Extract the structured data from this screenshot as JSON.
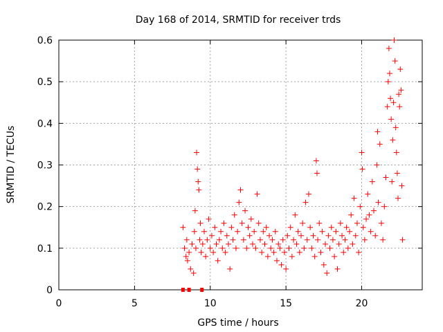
{
  "chart_data": {
    "type": "scatter",
    "title": "Day 168 of 2014, SRMTID for receiver trds",
    "xlabel": "GPS time / hours",
    "ylabel": "SRMTID / TECUs",
    "xlim": [
      0,
      24
    ],
    "ylim": [
      0,
      0.6
    ],
    "x_ticks": [
      0,
      5,
      10,
      15,
      20
    ],
    "y_ticks": [
      0,
      0.1,
      0.2,
      0.3,
      0.4,
      0.5,
      0.6
    ],
    "x_tick_labels": [
      "0",
      "5",
      "10",
      "15",
      "20"
    ],
    "y_tick_labels": [
      "0",
      "0.1",
      "0.2",
      "0.3",
      "0.4",
      "0.5",
      "0.6"
    ],
    "grid": true,
    "marker": "+",
    "color": "#ff0000",
    "series": [
      {
        "name": "SRMTID",
        "points": [
          [
            8.2,
            0.15
          ],
          [
            8.3,
            0.1
          ],
          [
            8.4,
            0.08
          ],
          [
            8.45,
            0.12
          ],
          [
            8.5,
            0.07
          ],
          [
            8.6,
            0.09
          ],
          [
            8.7,
            0.05
          ],
          [
            8.8,
            0.11
          ],
          [
            8.9,
            0.04
          ],
          [
            8.95,
            0.14
          ],
          [
            9.0,
            0.19
          ],
          [
            9.05,
            0.1
          ],
          [
            9.1,
            0.33
          ],
          [
            9.15,
            0.29
          ],
          [
            9.2,
            0.26
          ],
          [
            9.25,
            0.24
          ],
          [
            9.3,
            0.12
          ],
          [
            9.35,
            0.16
          ],
          [
            9.4,
            0.09
          ],
          [
            9.5,
            0.11
          ],
          [
            9.6,
            0.14
          ],
          [
            9.7,
            0.08
          ],
          [
            9.8,
            0.12
          ],
          [
            9.9,
            0.17
          ],
          [
            10.0,
            0.1
          ],
          [
            10.1,
            0.13
          ],
          [
            10.2,
            0.09
          ],
          [
            10.3,
            0.15
          ],
          [
            10.4,
            0.11
          ],
          [
            10.5,
            0.07
          ],
          [
            10.6,
            0.12
          ],
          [
            10.7,
            0.14
          ],
          [
            10.8,
            0.1
          ],
          [
            10.9,
            0.16
          ],
          [
            11.0,
            0.09
          ],
          [
            11.1,
            0.13
          ],
          [
            11.2,
            0.11
          ],
          [
            11.3,
            0.05
          ],
          [
            11.4,
            0.15
          ],
          [
            11.5,
            0.12
          ],
          [
            11.6,
            0.18
          ],
          [
            11.7,
            0.1
          ],
          [
            11.8,
            0.14
          ],
          [
            11.9,
            0.21
          ],
          [
            12.0,
            0.24
          ],
          [
            12.1,
            0.16
          ],
          [
            12.2,
            0.12
          ],
          [
            12.3,
            0.19
          ],
          [
            12.4,
            0.1
          ],
          [
            12.5,
            0.15
          ],
          [
            12.6,
            0.13
          ],
          [
            12.7,
            0.17
          ],
          [
            12.8,
            0.11
          ],
          [
            12.9,
            0.14
          ],
          [
            13.0,
            0.1
          ],
          [
            13.1,
            0.23
          ],
          [
            13.2,
            0.16
          ],
          [
            13.3,
            0.12
          ],
          [
            13.4,
            0.09
          ],
          [
            13.5,
            0.14
          ],
          [
            13.6,
            0.11
          ],
          [
            13.7,
            0.15
          ],
          [
            13.8,
            0.08
          ],
          [
            13.9,
            0.13
          ],
          [
            14.0,
            0.1
          ],
          [
            14.1,
            0.12
          ],
          [
            14.2,
            0.09
          ],
          [
            14.3,
            0.14
          ],
          [
            14.4,
            0.07
          ],
          [
            14.5,
            0.11
          ],
          [
            14.6,
            0.1
          ],
          [
            14.7,
            0.06
          ],
          [
            14.8,
            0.12
          ],
          [
            14.9,
            0.09
          ],
          [
            15.0,
            0.05
          ],
          [
            15.1,
            0.13
          ],
          [
            15.2,
            0.1
          ],
          [
            15.3,
            0.15
          ],
          [
            15.4,
            0.08
          ],
          [
            15.5,
            0.12
          ],
          [
            15.6,
            0.18
          ],
          [
            15.7,
            0.11
          ],
          [
            15.8,
            0.14
          ],
          [
            15.9,
            0.09
          ],
          [
            16.0,
            0.13
          ],
          [
            16.1,
            0.16
          ],
          [
            16.2,
            0.1
          ],
          [
            16.3,
            0.21
          ],
          [
            16.4,
            0.12
          ],
          [
            16.5,
            0.23
          ],
          [
            16.6,
            0.15
          ],
          [
            16.7,
            0.1
          ],
          [
            16.8,
            0.13
          ],
          [
            16.9,
            0.08
          ],
          [
            17.0,
            0.31
          ],
          [
            17.05,
            0.28
          ],
          [
            17.1,
            0.12
          ],
          [
            17.2,
            0.16
          ],
          [
            17.3,
            0.09
          ],
          [
            17.4,
            0.14
          ],
          [
            17.5,
            0.06
          ],
          [
            17.6,
            0.11
          ],
          [
            17.7,
            0.04
          ],
          [
            17.8,
            0.13
          ],
          [
            17.9,
            0.1
          ],
          [
            18.0,
            0.15
          ],
          [
            18.1,
            0.12
          ],
          [
            18.2,
            0.08
          ],
          [
            18.3,
            0.14
          ],
          [
            18.4,
            0.05
          ],
          [
            18.5,
            0.11
          ],
          [
            18.6,
            0.16
          ],
          [
            18.7,
            0.13
          ],
          [
            18.8,
            0.09
          ],
          [
            18.9,
            0.12
          ],
          [
            19.0,
            0.15
          ],
          [
            19.1,
            0.1
          ],
          [
            19.2,
            0.14
          ],
          [
            19.3,
            0.18
          ],
          [
            19.4,
            0.11
          ],
          [
            19.5,
            0.22
          ],
          [
            19.6,
            0.13
          ],
          [
            19.7,
            0.16
          ],
          [
            19.8,
            0.09
          ],
          [
            19.9,
            0.2
          ],
          [
            20.0,
            0.33
          ],
          [
            20.05,
            0.29
          ],
          [
            20.1,
            0.15
          ],
          [
            20.2,
            0.12
          ],
          [
            20.3,
            0.17
          ],
          [
            20.4,
            0.23
          ],
          [
            20.5,
            0.18
          ],
          [
            20.6,
            0.14
          ],
          [
            20.7,
            0.26
          ],
          [
            20.8,
            0.19
          ],
          [
            20.9,
            0.13
          ],
          [
            21.0,
            0.3
          ],
          [
            21.05,
            0.38
          ],
          [
            21.1,
            0.21
          ],
          [
            21.2,
            0.35
          ],
          [
            21.3,
            0.16
          ],
          [
            21.4,
            0.12
          ],
          [
            21.5,
            0.2
          ],
          [
            21.6,
            0.27
          ],
          [
            21.7,
            0.44
          ],
          [
            21.75,
            0.5
          ],
          [
            21.8,
            0.58
          ],
          [
            21.85,
            0.52
          ],
          [
            21.9,
            0.46
          ],
          [
            21.95,
            0.41
          ],
          [
            22.0,
            0.26
          ],
          [
            22.05,
            0.36
          ],
          [
            22.1,
            0.45
          ],
          [
            22.15,
            0.6
          ],
          [
            22.2,
            0.55
          ],
          [
            22.25,
            0.39
          ],
          [
            22.3,
            0.33
          ],
          [
            22.35,
            0.28
          ],
          [
            22.4,
            0.22
          ],
          [
            22.45,
            0.47
          ],
          [
            22.5,
            0.44
          ],
          [
            22.55,
            0.53
          ],
          [
            22.6,
            0.48
          ],
          [
            22.65,
            0.25
          ],
          [
            22.7,
            0.12
          ]
        ]
      }
    ],
    "zero_markers": [
      8.2,
      8.6,
      9.45
    ]
  }
}
